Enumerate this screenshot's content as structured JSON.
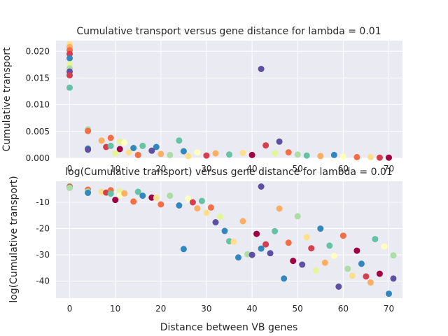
{
  "chart_data": [
    {
      "type": "scatter",
      "title": "Cumulative transport versus gene distance for lambda = 0.01",
      "xlabel": "",
      "ylabel": "Cumulative transport",
      "xlim": [
        -3,
        73
      ],
      "ylim": [
        0,
        0.022
      ],
      "xticks": [
        0,
        10,
        20,
        30,
        40,
        50,
        60,
        70
      ],
      "yticks": [
        0.0,
        0.005,
        0.01,
        0.015,
        0.02
      ],
      "ytick_labels": [
        "0.000",
        "0.005",
        "0.010",
        "0.015",
        "0.020"
      ],
      "grid": true,
      "palette": [
        "#9e0142",
        "#d53e4f",
        "#f46d43",
        "#fdae61",
        "#fee08b",
        "#ffffbf",
        "#e6f598",
        "#abdda4",
        "#66c2a5",
        "#3288bd",
        "#5e4fa2"
      ],
      "points": [
        [
          0,
          0.0213,
          4
        ],
        [
          0,
          0.0208,
          3
        ],
        [
          0,
          0.0202,
          2
        ],
        [
          0,
          0.0195,
          1
        ],
        [
          0,
          0.0187,
          9
        ],
        [
          0,
          0.0176,
          6
        ],
        [
          0,
          0.0168,
          7
        ],
        [
          0,
          0.0162,
          10
        ],
        [
          0,
          0.0155,
          1
        ],
        [
          0,
          0.0132,
          8
        ],
        [
          4,
          0.0054,
          7
        ],
        [
          4,
          0.0051,
          2
        ],
        [
          4,
          0.0018,
          9
        ],
        [
          4,
          0.0016,
          10
        ],
        [
          7,
          0.0033,
          3
        ],
        [
          8,
          0.0021,
          1
        ],
        [
          9,
          0.0038,
          2
        ],
        [
          9,
          0.0023,
          8
        ],
        [
          10,
          0.0009,
          6
        ],
        [
          11,
          0.0031,
          6
        ],
        [
          11,
          0.0017,
          0
        ],
        [
          12,
          0.0029,
          5
        ],
        [
          13,
          0.0011,
          4
        ],
        [
          14,
          0.0019,
          9
        ],
        [
          15,
          0.0006,
          2
        ],
        [
          16,
          0.0023,
          8
        ],
        [
          18,
          0.0014,
          10
        ],
        [
          19,
          0.0021,
          9
        ],
        [
          20,
          0.0008,
          3
        ],
        [
          22,
          0.0006,
          7
        ],
        [
          24,
          0.0033,
          8
        ],
        [
          25,
          0.0013,
          9
        ],
        [
          26,
          0.0004,
          4
        ],
        [
          28,
          0.0011,
          5
        ],
        [
          30,
          0.0005,
          1
        ],
        [
          32,
          0.0009,
          3
        ],
        [
          35,
          0.0007,
          8
        ],
        [
          38,
          0.001,
          4
        ],
        [
          40,
          0.0006,
          0
        ],
        [
          42,
          0.0167,
          10
        ],
        [
          43,
          0.0024,
          1
        ],
        [
          45,
          0.0009,
          6
        ],
        [
          46,
          0.0031,
          10
        ],
        [
          48,
          0.0011,
          2
        ],
        [
          50,
          0.0007,
          7
        ],
        [
          52,
          0.0005,
          8
        ],
        [
          55,
          0.0004,
          3
        ],
        [
          58,
          0.0006,
          9
        ],
        [
          60,
          0.0003,
          5
        ],
        [
          63,
          0.0002,
          2
        ],
        [
          66,
          0.0002,
          4
        ],
        [
          68,
          0.0001,
          1
        ],
        [
          70,
          0.0001,
          0
        ]
      ]
    },
    {
      "type": "scatter",
      "title": "log(Cumulative transport) versus gene distance for lambda = 0.01",
      "xlabel": "Distance between VB genes",
      "ylabel": "log(Cumulative transport)",
      "xlim": [
        -3,
        73
      ],
      "ylim": [
        -46.5,
        -2
      ],
      "xticks": [
        0,
        10,
        20,
        30,
        40,
        50,
        60,
        70
      ],
      "yticks": [
        -10,
        -20,
        -30,
        -40
      ],
      "grid": true,
      "points": [
        [
          0,
          -3.8,
          4
        ],
        [
          0,
          -3.9,
          3
        ],
        [
          0,
          -4.1,
          9
        ],
        [
          0,
          -4.3,
          2
        ],
        [
          0,
          -4.5,
          7
        ],
        [
          4,
          -5.2,
          2
        ],
        [
          4,
          -5.9,
          7
        ],
        [
          4,
          -6.4,
          9
        ],
        [
          7,
          -6.0,
          4
        ],
        [
          8,
          -6.3,
          1
        ],
        [
          9,
          -5.4,
          2
        ],
        [
          9,
          -6.7,
          8
        ],
        [
          10,
          -9.1,
          0
        ],
        [
          11,
          -5.8,
          6
        ],
        [
          11,
          -7.4,
          5
        ],
        [
          12,
          -6.6,
          3
        ],
        [
          14,
          -9.7,
          2
        ],
        [
          15,
          -6.0,
          8
        ],
        [
          16,
          -7.5,
          9
        ],
        [
          18,
          -8.2,
          0
        ],
        [
          19,
          -8.3,
          4
        ],
        [
          20,
          -10.8,
          2
        ],
        [
          22,
          -7.5,
          7
        ],
        [
          24,
          -11.2,
          9
        ],
        [
          25,
          -27.8,
          9
        ],
        [
          26,
          -8.6,
          5
        ],
        [
          27,
          -10.0,
          1
        ],
        [
          28,
          -12.3,
          3
        ],
        [
          29,
          -9.5,
          8
        ],
        [
          30,
          -14.0,
          4
        ],
        [
          31,
          -12.0,
          2
        ],
        [
          32,
          -17.6,
          10
        ],
        [
          33,
          -15.5,
          6
        ],
        [
          34,
          -20.9,
          9
        ],
        [
          35,
          -24.8,
          8
        ],
        [
          36,
          -25.0,
          4
        ],
        [
          37,
          -31.0,
          9
        ],
        [
          38,
          -17.2,
          3
        ],
        [
          39,
          -29.8,
          7
        ],
        [
          40,
          -30.0,
          10
        ],
        [
          41,
          -22.0,
          0
        ],
        [
          42,
          -4.0,
          10
        ],
        [
          42,
          -27.6,
          9
        ],
        [
          43,
          -26.0,
          1
        ],
        [
          44,
          -29.4,
          10
        ],
        [
          45,
          -21.0,
          8
        ],
        [
          46,
          -12.4,
          3
        ],
        [
          47,
          -39.0,
          9
        ],
        [
          48,
          -25.4,
          2
        ],
        [
          49,
          -32.3,
          0
        ],
        [
          50,
          -15.3,
          7
        ],
        [
          51,
          -33.7,
          10
        ],
        [
          52,
          -23.3,
          4
        ],
        [
          53,
          -27.5,
          1
        ],
        [
          54,
          -36.0,
          6
        ],
        [
          55,
          -20.0,
          9
        ],
        [
          56,
          -33.0,
          3
        ],
        [
          57,
          -26.5,
          8
        ],
        [
          58,
          -30.4,
          5
        ],
        [
          59,
          -42.1,
          10
        ],
        [
          60,
          -22.7,
          2
        ],
        [
          61,
          -35.3,
          7
        ],
        [
          62,
          -38.0,
          4
        ],
        [
          63,
          -28.4,
          0
        ],
        [
          64,
          -33.4,
          9
        ],
        [
          65,
          -38.2,
          1
        ],
        [
          66,
          -40.5,
          3
        ],
        [
          67,
          -24.0,
          8
        ],
        [
          68,
          -37.2,
          0
        ],
        [
          69,
          -26.8,
          5
        ],
        [
          70,
          -44.8,
          9
        ],
        [
          71,
          -39.0,
          10
        ],
        [
          71,
          -30.2,
          7
        ]
      ]
    }
  ]
}
